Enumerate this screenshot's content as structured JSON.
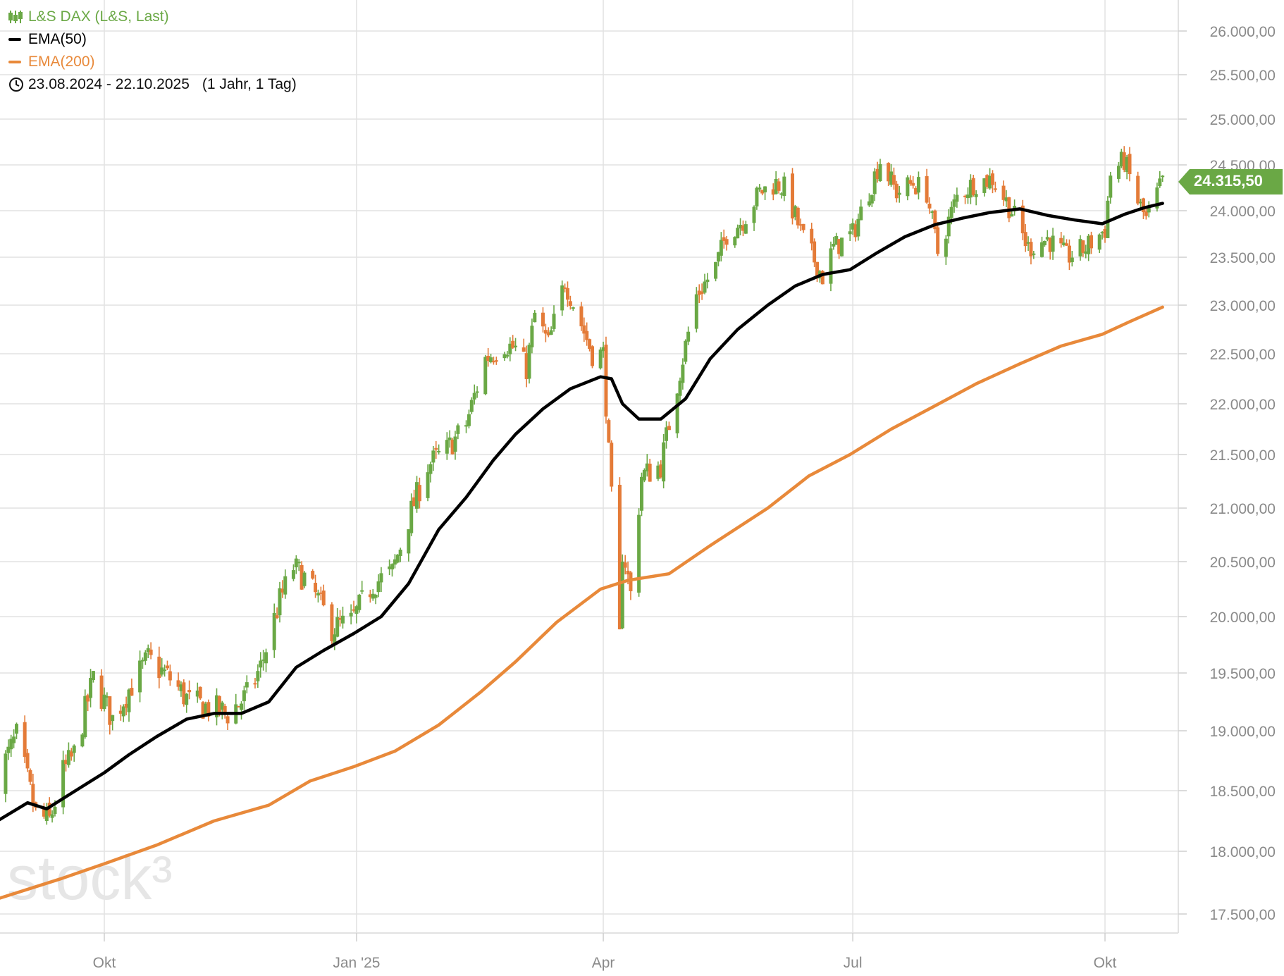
{
  "chart_data": {
    "type": "candlestick",
    "instrument": "L&S DAX (L&S, Last)",
    "date_range": "23.08.2024 - 22.10.2025",
    "range_note": "(1 Jahr, 1 Tag)",
    "last_value_label": "24.315,50",
    "last_value": 24315.5,
    "y_ticks": [
      17500,
      18000,
      18500,
      19000,
      19500,
      20000,
      20500,
      21000,
      21500,
      22000,
      22500,
      23000,
      23500,
      24000,
      24500,
      25000,
      25500,
      26000
    ],
    "y_tick_labels": [
      "17.500,00",
      "18.000,00",
      "18.500,00",
      "19.000,00",
      "19.500,00",
      "20.000,00",
      "20.500,00",
      "21.000,00",
      "21.500,00",
      "22.000,00",
      "22.500,00",
      "23.000,00",
      "23.500,00",
      "24.000,00",
      "24.500,00",
      "25.000,00",
      "25.500,00",
      "26.000,00"
    ],
    "x_ticks": [
      {
        "label": "Okt",
        "date": "2024-10-01"
      },
      {
        "label": "Jan '25",
        "date": "2025-01-01"
      },
      {
        "label": "Apr",
        "date": "2025-04-01"
      },
      {
        "label": "Jul",
        "date": "2025-07-01"
      },
      {
        "label": "Okt",
        "date": "2025-10-01"
      }
    ],
    "price_path": [
      [
        "2024-08-23",
        18600
      ],
      [
        "2024-08-30",
        18950
      ],
      [
        "2024-09-06",
        18300
      ],
      [
        "2024-09-11",
        18250
      ],
      [
        "2024-09-16",
        18650
      ],
      [
        "2024-09-20",
        18800
      ],
      [
        "2024-09-27",
        19450
      ],
      [
        "2024-10-04",
        19100
      ],
      [
        "2024-10-11",
        19400
      ],
      [
        "2024-10-17",
        19620
      ],
      [
        "2024-10-25",
        19450
      ],
      [
        "2024-11-01",
        19250
      ],
      [
        "2024-11-08",
        19200
      ],
      [
        "2024-11-15",
        19150
      ],
      [
        "2024-11-22",
        19300
      ],
      [
        "2024-11-27",
        19550
      ],
      [
        "2024-12-04",
        20150
      ],
      [
        "2024-12-09",
        20450
      ],
      [
        "2024-12-13",
        20350
      ],
      [
        "2024-12-18",
        20150
      ],
      [
        "2024-12-23",
        19900
      ],
      [
        "2024-12-30",
        19950
      ],
      [
        "2025-01-07",
        20300
      ],
      [
        "2025-01-14",
        20400
      ],
      [
        "2025-01-20",
        20900
      ],
      [
        "2025-01-27",
        21400
      ],
      [
        "2025-02-03",
        21550
      ],
      [
        "2025-02-10",
        21800
      ],
      [
        "2025-02-17",
        22450
      ],
      [
        "2025-02-24",
        22600
      ],
      [
        "2025-02-28",
        22550
      ],
      [
        "2025-03-04",
        22350
      ],
      [
        "2025-03-07",
        22900
      ],
      [
        "2025-03-12",
        22600
      ],
      [
        "2025-03-18",
        23250
      ],
      [
        "2025-03-24",
        22800
      ],
      [
        "2025-03-28",
        22500
      ],
      [
        "2025-04-01",
        22500
      ],
      [
        "2025-04-03",
        21500
      ],
      [
        "2025-04-07",
        19800
      ],
      [
        "2025-04-08",
        20600
      ],
      [
        "2025-04-09",
        20500
      ],
      [
        "2025-04-11",
        20200
      ],
      [
        "2025-04-15",
        21300
      ],
      [
        "2025-04-22",
        21400
      ],
      [
        "2025-04-28",
        22200
      ],
      [
        "2025-05-05",
        23100
      ],
      [
        "2025-05-12",
        23400
      ],
      [
        "2025-05-16",
        23750
      ],
      [
        "2025-05-22",
        23900
      ],
      [
        "2025-05-28",
        24200
      ],
      [
        "2025-06-03",
        24300
      ],
      [
        "2025-06-06",
        24250
      ],
      [
        "2025-06-13",
        23700
      ],
      [
        "2025-06-20",
        23300
      ],
      [
        "2025-06-24",
        23600
      ],
      [
        "2025-07-01",
        23750
      ],
      [
        "2025-07-08",
        24300
      ],
      [
        "2025-07-11",
        24550
      ],
      [
        "2025-07-17",
        24200
      ],
      [
        "2025-07-23",
        24300
      ],
      [
        "2025-07-28",
        24200
      ],
      [
        "2025-08-01",
        23550
      ],
      [
        "2025-08-08",
        24150
      ],
      [
        "2025-08-14",
        24300
      ],
      [
        "2025-08-21",
        24350
      ],
      [
        "2025-08-28",
        24000
      ],
      [
        "2025-09-03",
        23600
      ],
      [
        "2025-09-10",
        23700
      ],
      [
        "2025-09-17",
        23500
      ],
      [
        "2025-09-24",
        23600
      ],
      [
        "2025-10-01",
        23800
      ],
      [
        "2025-10-03",
        24400
      ],
      [
        "2025-10-08",
        24550
      ],
      [
        "2025-10-13",
        24100
      ],
      [
        "2025-10-16",
        23900
      ],
      [
        "2025-10-22",
        24315.5
      ]
    ],
    "series": [
      {
        "name": "EMA(50)",
        "color": "#000000",
        "points": [
          [
            "2024-08-23",
            18250
          ],
          [
            "2024-09-03",
            18400
          ],
          [
            "2024-09-10",
            18350
          ],
          [
            "2024-09-17",
            18450
          ],
          [
            "2024-09-24",
            18550
          ],
          [
            "2024-10-01",
            18650
          ],
          [
            "2024-10-10",
            18800
          ],
          [
            "2024-10-20",
            18950
          ],
          [
            "2024-10-31",
            19100
          ],
          [
            "2024-11-10",
            19150
          ],
          [
            "2024-11-20",
            19150
          ],
          [
            "2024-11-30",
            19250
          ],
          [
            "2024-12-10",
            19550
          ],
          [
            "2024-12-20",
            19700
          ],
          [
            "2024-12-31",
            19850
          ],
          [
            "2025-01-10",
            20000
          ],
          [
            "2025-01-20",
            20300
          ],
          [
            "2025-01-31",
            20800
          ],
          [
            "2025-02-10",
            21100
          ],
          [
            "2025-02-20",
            21450
          ],
          [
            "2025-02-28",
            21700
          ],
          [
            "2025-03-10",
            21950
          ],
          [
            "2025-03-20",
            22150
          ],
          [
            "2025-03-31",
            22270
          ],
          [
            "2025-04-04",
            22250
          ],
          [
            "2025-04-08",
            22000
          ],
          [
            "2025-04-14",
            21850
          ],
          [
            "2025-04-22",
            21850
          ],
          [
            "2025-05-01",
            22050
          ],
          [
            "2025-05-10",
            22450
          ],
          [
            "2025-05-20",
            22750
          ],
          [
            "2025-05-31",
            23000
          ],
          [
            "2025-06-10",
            23200
          ],
          [
            "2025-06-20",
            23320
          ],
          [
            "2025-06-30",
            23370
          ],
          [
            "2025-07-10",
            23550
          ],
          [
            "2025-07-20",
            23720
          ],
          [
            "2025-07-31",
            23850
          ],
          [
            "2025-08-10",
            23920
          ],
          [
            "2025-08-20",
            23980
          ],
          [
            "2025-08-31",
            24020
          ],
          [
            "2025-09-10",
            23950
          ],
          [
            "2025-09-20",
            23900
          ],
          [
            "2025-09-30",
            23860
          ],
          [
            "2025-10-08",
            23960
          ],
          [
            "2025-10-15",
            24030
          ],
          [
            "2025-10-22",
            24080
          ]
        ]
      },
      {
        "name": "EMA(200)",
        "color": "#e8893a",
        "points": [
          [
            "2024-08-23",
            17620
          ],
          [
            "2024-09-15",
            17780
          ],
          [
            "2024-10-01",
            17900
          ],
          [
            "2024-10-20",
            18050
          ],
          [
            "2024-11-10",
            18250
          ],
          [
            "2024-11-30",
            18380
          ],
          [
            "2024-12-15",
            18580
          ],
          [
            "2024-12-31",
            18700
          ],
          [
            "2025-01-15",
            18830
          ],
          [
            "2025-01-31",
            19050
          ],
          [
            "2025-02-15",
            19330
          ],
          [
            "2025-02-28",
            19600
          ],
          [
            "2025-03-15",
            19950
          ],
          [
            "2025-03-31",
            20250
          ],
          [
            "2025-04-10",
            20330
          ],
          [
            "2025-04-25",
            20390
          ],
          [
            "2025-05-10",
            20650
          ],
          [
            "2025-05-31",
            21000
          ],
          [
            "2025-06-15",
            21300
          ],
          [
            "2025-06-30",
            21500
          ],
          [
            "2025-07-15",
            21750
          ],
          [
            "2025-07-31",
            21980
          ],
          [
            "2025-08-15",
            22200
          ],
          [
            "2025-08-31",
            22400
          ],
          [
            "2025-09-15",
            22580
          ],
          [
            "2025-09-30",
            22700
          ],
          [
            "2025-10-10",
            22830
          ],
          [
            "2025-10-22",
            22980
          ]
        ]
      }
    ],
    "colors": {
      "up": "#6aa845",
      "down": "#e47b38",
      "grid": "#e2e2e2",
      "axis_text": "#8a8a8a"
    },
    "watermark": "stock³",
    "grid": true,
    "axis_position": "right"
  }
}
